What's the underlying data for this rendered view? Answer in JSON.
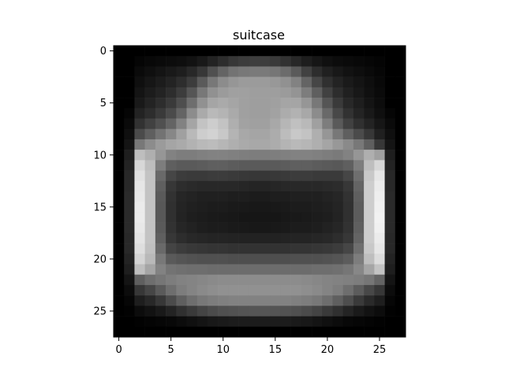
{
  "chart_data": {
    "type": "heatmap",
    "title": "suitcase",
    "colormap": "gray",
    "value_range": [
      0,
      255
    ],
    "xlim": [
      -0.5,
      27.5
    ],
    "ylim": [
      27.5,
      -0.5
    ],
    "x_ticks": [
      0,
      5,
      10,
      15,
      20,
      25
    ],
    "y_ticks": [
      0,
      5,
      10,
      15,
      20,
      25
    ],
    "x_tick_labels": [
      "0",
      "5",
      "10",
      "15",
      "20",
      "25"
    ],
    "y_tick_labels": [
      "0",
      "5",
      "10",
      "15",
      "20",
      "25"
    ],
    "grid": false,
    "xlabel": "",
    "ylabel": "",
    "values": [
      [
        0,
        0,
        0,
        0,
        0,
        0,
        0,
        0,
        0,
        0,
        0,
        0,
        0,
        0,
        0,
        0,
        0,
        0,
        0,
        0,
        0,
        0,
        0,
        0,
        0,
        0,
        0,
        0
      ],
      [
        0,
        0,
        5,
        8,
        10,
        12,
        14,
        18,
        25,
        35,
        45,
        55,
        60,
        62,
        62,
        58,
        50,
        40,
        30,
        22,
        16,
        12,
        10,
        8,
        6,
        4,
        0,
        0
      ],
      [
        0,
        0,
        10,
        15,
        20,
        25,
        30,
        40,
        55,
        80,
        100,
        115,
        120,
        122,
        122,
        118,
        108,
        90,
        65,
        45,
        32,
        24,
        18,
        14,
        10,
        6,
        0,
        0
      ],
      [
        0,
        0,
        15,
        22,
        28,
        35,
        45,
        60,
        90,
        120,
        140,
        150,
        155,
        155,
        155,
        152,
        145,
        130,
        100,
        70,
        48,
        35,
        26,
        20,
        14,
        8,
        0,
        0
      ],
      [
        0,
        0,
        20,
        28,
        35,
        45,
        60,
        85,
        120,
        145,
        155,
        160,
        160,
        158,
        158,
        158,
        155,
        148,
        125,
        95,
        65,
        45,
        32,
        24,
        16,
        10,
        0,
        0
      ],
      [
        0,
        0,
        25,
        35,
        45,
        58,
        78,
        110,
        145,
        165,
        170,
        165,
        160,
        158,
        158,
        160,
        165,
        165,
        150,
        120,
        85,
        58,
        40,
        30,
        20,
        12,
        0,
        0
      ],
      [
        0,
        5,
        35,
        45,
        58,
        75,
        100,
        140,
        170,
        185,
        180,
        170,
        160,
        158,
        158,
        162,
        172,
        178,
        168,
        140,
        105,
        72,
        50,
        36,
        25,
        15,
        5,
        0
      ],
      [
        0,
        10,
        50,
        65,
        80,
        100,
        130,
        165,
        195,
        205,
        195,
        175,
        162,
        160,
        160,
        168,
        182,
        192,
        185,
        160,
        125,
        90,
        65,
        48,
        35,
        22,
        10,
        0
      ],
      [
        0,
        15,
        75,
        95,
        115,
        135,
        160,
        185,
        205,
        210,
        200,
        180,
        168,
        165,
        165,
        172,
        188,
        200,
        195,
        175,
        150,
        120,
        95,
        75,
        55,
        32,
        15,
        0
      ],
      [
        0,
        20,
        120,
        140,
        155,
        165,
        170,
        178,
        185,
        188,
        182,
        175,
        170,
        168,
        168,
        172,
        180,
        185,
        182,
        175,
        165,
        152,
        138,
        120,
        95,
        55,
        20,
        0
      ],
      [
        0,
        30,
        190,
        175,
        150,
        130,
        125,
        125,
        128,
        130,
        130,
        128,
        126,
        125,
        125,
        126,
        128,
        130,
        130,
        128,
        125,
        122,
        130,
        150,
        175,
        160,
        30,
        0
      ],
      [
        0,
        35,
        215,
        190,
        125,
        95,
        90,
        90,
        92,
        95,
        95,
        92,
        90,
        90,
        90,
        90,
        92,
        95,
        95,
        92,
        90,
        88,
        95,
        125,
        190,
        215,
        35,
        0
      ],
      [
        0,
        40,
        225,
        195,
        105,
        70,
        60,
        58,
        58,
        60,
        60,
        58,
        56,
        55,
        55,
        56,
        58,
        60,
        60,
        58,
        58,
        58,
        70,
        110,
        200,
        230,
        40,
        0
      ],
      [
        0,
        40,
        230,
        195,
        95,
        55,
        45,
        42,
        40,
        40,
        40,
        40,
        38,
        36,
        36,
        38,
        40,
        40,
        40,
        40,
        42,
        44,
        55,
        100,
        205,
        235,
        40,
        0
      ],
      [
        0,
        42,
        232,
        195,
        90,
        50,
        38,
        35,
        32,
        32,
        32,
        30,
        30,
        28,
        28,
        30,
        30,
        32,
        32,
        32,
        35,
        38,
        50,
        95,
        205,
        238,
        42,
        0
      ],
      [
        0,
        42,
        235,
        195,
        88,
        48,
        36,
        32,
        30,
        28,
        28,
        26,
        25,
        24,
        24,
        25,
        26,
        28,
        28,
        30,
        32,
        36,
        48,
        92,
        205,
        240,
        42,
        0
      ],
      [
        0,
        42,
        235,
        195,
        88,
        48,
        35,
        30,
        28,
        26,
        25,
        24,
        22,
        22,
        22,
        22,
        24,
        25,
        26,
        28,
        30,
        35,
        48,
        92,
        205,
        242,
        42,
        0
      ],
      [
        0,
        42,
        232,
        195,
        90,
        50,
        38,
        34,
        30,
        28,
        28,
        26,
        25,
        24,
        24,
        25,
        26,
        28,
        28,
        30,
        34,
        38,
        50,
        95,
        205,
        240,
        42,
        0
      ],
      [
        0,
        40,
        228,
        195,
        95,
        55,
        45,
        40,
        38,
        36,
        36,
        35,
        34,
        34,
        34,
        34,
        35,
        36,
        36,
        38,
        40,
        45,
        55,
        100,
        205,
        235,
        40,
        0
      ],
      [
        0,
        40,
        222,
        192,
        105,
        68,
        60,
        56,
        54,
        52,
        52,
        50,
        50,
        50,
        50,
        50,
        50,
        52,
        52,
        54,
        56,
        60,
        70,
        110,
        200,
        230,
        40,
        0
      ],
      [
        0,
        35,
        212,
        185,
        120,
        90,
        85,
        82,
        80,
        80,
        80,
        78,
        78,
        78,
        78,
        78,
        78,
        80,
        80,
        80,
        82,
        85,
        92,
        125,
        190,
        220,
        35,
        0
      ],
      [
        0,
        30,
        190,
        165,
        130,
        115,
        112,
        110,
        110,
        108,
        108,
        108,
        108,
        108,
        108,
        108,
        108,
        108,
        108,
        110,
        110,
        112,
        118,
        135,
        165,
        195,
        30,
        0
      ],
      [
        0,
        20,
        95,
        110,
        118,
        125,
        130,
        132,
        135,
        138,
        140,
        140,
        140,
        140,
        140,
        140,
        140,
        140,
        138,
        135,
        132,
        130,
        128,
        125,
        118,
        100,
        20,
        0
      ],
      [
        0,
        12,
        55,
        70,
        90,
        110,
        125,
        132,
        138,
        142,
        145,
        145,
        145,
        145,
        145,
        145,
        145,
        145,
        142,
        138,
        132,
        125,
        110,
        92,
        72,
        55,
        12,
        0
      ],
      [
        0,
        6,
        30,
        40,
        55,
        75,
        95,
        110,
        120,
        125,
        128,
        130,
        130,
        130,
        130,
        130,
        130,
        128,
        125,
        120,
        110,
        95,
        78,
        58,
        42,
        30,
        6,
        0
      ],
      [
        0,
        2,
        12,
        18,
        25,
        35,
        48,
        58,
        68,
        75,
        80,
        82,
        84,
        85,
        85,
        84,
        82,
        80,
        75,
        68,
        58,
        48,
        36,
        26,
        18,
        12,
        2,
        0
      ],
      [
        0,
        0,
        2,
        4,
        6,
        8,
        12,
        16,
        20,
        24,
        26,
        28,
        28,
        28,
        28,
        28,
        28,
        26,
        24,
        20,
        16,
        12,
        8,
        6,
        4,
        2,
        0,
        0
      ],
      [
        0,
        0,
        0,
        0,
        0,
        0,
        0,
        0,
        0,
        0,
        0,
        0,
        0,
        0,
        0,
        0,
        0,
        0,
        0,
        0,
        0,
        0,
        0,
        0,
        0,
        0,
        0,
        0
      ]
    ]
  }
}
